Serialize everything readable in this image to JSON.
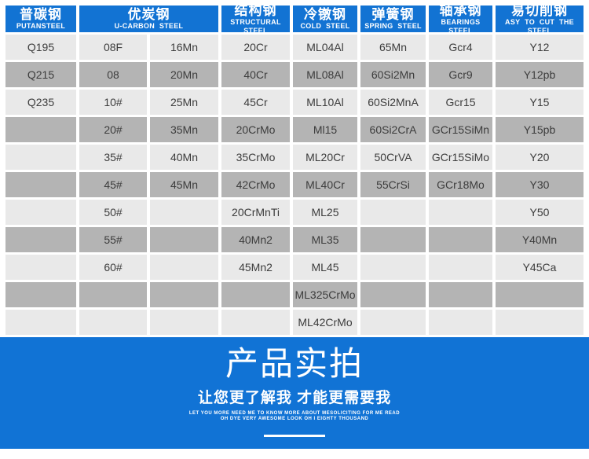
{
  "table": {
    "columns": [
      {
        "cn": "普碳钢",
        "en": "PUTANSTEEL",
        "span": 1
      },
      {
        "cn": "优炭钢",
        "en": "U-CARBON STEEL",
        "span": 2
      },
      {
        "cn": "结构钢",
        "en": "STRUCTURAL STEEL",
        "span": 1
      },
      {
        "cn": "冷镦钢",
        "en": "COLD STEEL",
        "span": 1
      },
      {
        "cn": "弹簧钢",
        "en": "SPRING STEEL",
        "span": 1
      },
      {
        "cn": "轴承钢",
        "en": "BEARINGS STEEL",
        "span": 1
      },
      {
        "cn": "易切削钢",
        "en": "ASY TO CUT THE STEEL",
        "span": 1
      }
    ],
    "rows": [
      [
        "Q195",
        "08F",
        "16Mn",
        "20Cr",
        "ML04Al",
        "65Mn",
        "Gcr4",
        "Y12"
      ],
      [
        "Q215",
        "08",
        "20Mn",
        "40Cr",
        "ML08Al",
        "60Si2Mn",
        "Gcr9",
        "Y12pb"
      ],
      [
        "Q235",
        "10#",
        "25Mn",
        "45Cr",
        "ML10Al",
        "60Si2MnA",
        "Gcr15",
        "Y15"
      ],
      [
        "",
        "20#",
        "35Mn",
        "20CrMo",
        "Ml15",
        "60Si2CrA",
        "GCr15SiMn",
        "Y15pb"
      ],
      [
        "",
        "35#",
        "40Mn",
        "35CrMo",
        "ML20Cr",
        "50CrVA",
        "GCr15SiMo",
        "Y20"
      ],
      [
        "",
        "45#",
        "45Mn",
        "42CrMo",
        "ML40Cr",
        "55CrSi",
        "GCr18Mo",
        "Y30"
      ],
      [
        "",
        "50#",
        "",
        "20CrMnTi",
        "ML25",
        "",
        "",
        "Y50"
      ],
      [
        "",
        "55#",
        "",
        "40Mn2",
        "ML35",
        "",
        "",
        "Y40Mn"
      ],
      [
        "",
        "60#",
        "",
        "45Mn2",
        "ML45",
        "",
        "",
        "Y45Ca"
      ],
      [
        "",
        "",
        "",
        "",
        "ML325CrMo",
        "",
        "",
        ""
      ],
      [
        "",
        "",
        "",
        "",
        "ML42CrMo",
        "",
        "",
        ""
      ]
    ]
  },
  "banner": {
    "title": "产品实拍",
    "subtitle": "让您更了解我 才能更需要我",
    "tagline_line1": "LET YOU MORE NEED ME TO KNOW MORE ABOUT MESOLICITING FOR ME READ",
    "tagline_line2": "OH DYE VERY AWESOME LOOK OH I EIGHTY THOUSAND"
  },
  "colors": {
    "header_blue": "#1273d3",
    "banner_blue": "#1173d5",
    "row_light": "#e9e9e9",
    "row_dark": "#b4b4b4",
    "cell_text": "#3c3c3c",
    "header_text": "#ffffff"
  }
}
